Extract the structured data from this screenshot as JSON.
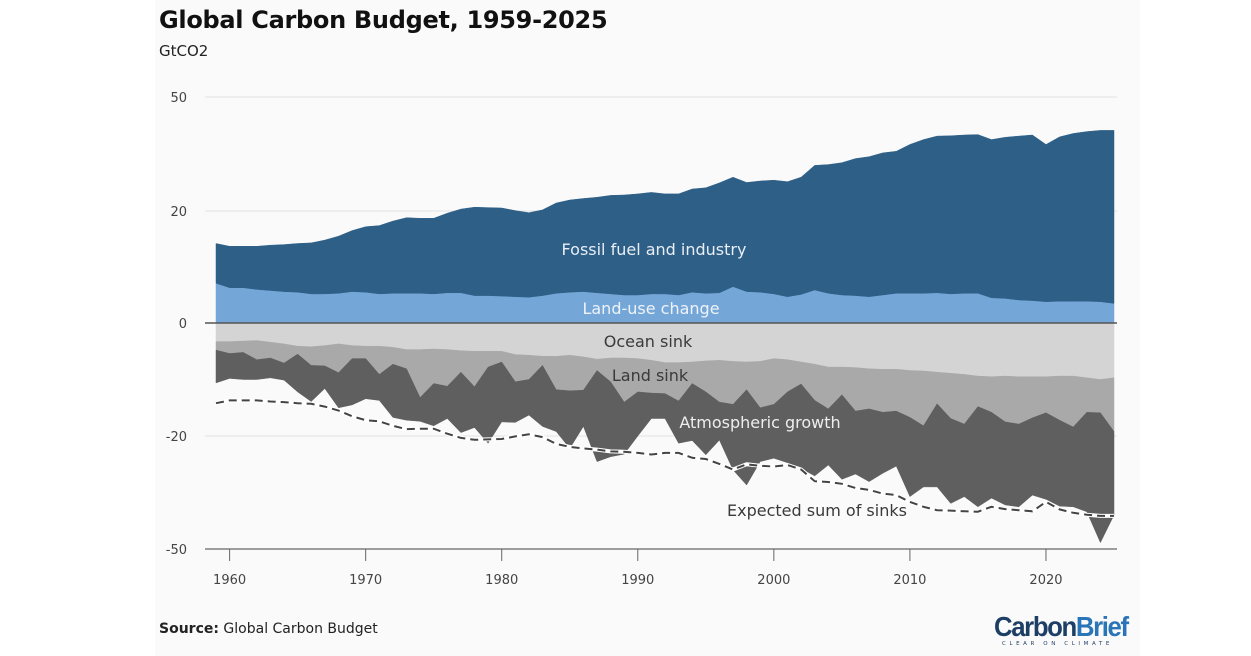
{
  "title": "Global Carbon Budget, 1959-2025",
  "subtitle": "GtCO2",
  "source_label": "Source:",
  "source_text": "Global Carbon Budget",
  "logo": {
    "part1": "Carbon",
    "part2": "Brief",
    "tagline": "CLEAR ON CLIMATE"
  },
  "colors": {
    "fossil": "#2e5f87",
    "land_use": "#74a6d7",
    "ocean_sink": "#d4d4d4",
    "land_sink": "#a9a9a9",
    "atmospheric": "#5f5f5f",
    "expected_line": "#444444"
  },
  "chart_data": {
    "type": "area",
    "title": "Global Carbon Budget, 1959-2025",
    "subtitle": "GtCO2",
    "xlabel": "",
    "ylabel": "GtCO2",
    "xlim": [
      1959,
      2025
    ],
    "x_ticks": [
      1960,
      1970,
      1980,
      1990,
      2000,
      2010,
      2020
    ],
    "y_ticks": [
      50,
      20,
      0,
      -20,
      -50
    ],
    "y_scale_note": "tick labels are evenly spaced (non-linear scale)",
    "grid": true,
    "x": [
      1959,
      1960,
      1961,
      1962,
      1963,
      1964,
      1965,
      1966,
      1967,
      1968,
      1969,
      1970,
      1971,
      1972,
      1973,
      1974,
      1975,
      1976,
      1977,
      1978,
      1979,
      1980,
      1981,
      1982,
      1983,
      1984,
      1985,
      1986,
      1987,
      1988,
      1989,
      1990,
      1991,
      1992,
      1993,
      1994,
      1995,
      1996,
      1997,
      1998,
      1999,
      2000,
      2001,
      2002,
      2003,
      2004,
      2005,
      2006,
      2007,
      2008,
      2009,
      2010,
      2011,
      2012,
      2013,
      2014,
      2015,
      2016,
      2017,
      2018,
      2019,
      2020,
      2021,
      2022,
      2023,
      2024,
      2025
    ],
    "series": [
      {
        "name": "Land-use change",
        "stack": "positive",
        "label": "Land-use change",
        "values": [
          7.1,
          6.3,
          6.3,
          6.0,
          5.8,
          5.6,
          5.5,
          5.2,
          5.2,
          5.3,
          5.6,
          5.5,
          5.2,
          5.3,
          5.3,
          5.3,
          5.2,
          5.4,
          5.4,
          4.9,
          4.9,
          4.8,
          4.7,
          4.6,
          4.9,
          5.3,
          5.5,
          5.6,
          5.4,
          5.2,
          5.0,
          5.0,
          5.2,
          5.2,
          5.0,
          5.5,
          5.3,
          5.4,
          6.5,
          5.6,
          5.5,
          5.2,
          4.7,
          5.1,
          5.9,
          5.3,
          5.0,
          4.9,
          4.7,
          5.0,
          5.3,
          5.3,
          5.3,
          5.4,
          5.2,
          5.3,
          5.3,
          4.5,
          4.4,
          4.1,
          4.0,
          3.8,
          3.9,
          3.9,
          3.9,
          3.8,
          3.5
        ]
      },
      {
        "name": "Fossil fuel and industry",
        "stack": "positive",
        "label": "Fossil fuel and industry",
        "values": [
          7.1,
          7.4,
          7.4,
          7.7,
          8.1,
          8.4,
          8.7,
          9.1,
          9.6,
          10.2,
          10.9,
          11.7,
          12.2,
          12.9,
          13.5,
          13.4,
          13.5,
          14.2,
          15.1,
          16.1,
          16.0,
          16.0,
          15.4,
          15.1,
          15.4,
          16.8,
          17.4,
          17.7,
          18.2,
          18.9,
          19.2,
          19.5,
          19.7,
          19.3,
          19.5,
          20.3,
          20.8,
          22.0,
          22.4,
          21.9,
          22.4,
          22.9,
          23.0,
          23.8,
          26.1,
          26.9,
          27.7,
          28.9,
          29.6,
          30.3,
          30.4,
          32.2,
          33.5,
          34.3,
          34.6,
          34.7,
          34.8,
          34.3,
          35.0,
          35.6,
          36.0,
          33.7,
          35.6,
          36.5,
          37.0,
          37.4,
          37.7
        ]
      },
      {
        "name": "Ocean sink",
        "stack": "negative",
        "label": "Ocean sink",
        "values": [
          -3.3,
          -3.3,
          -3.2,
          -3.1,
          -3.4,
          -3.7,
          -4.1,
          -4.2,
          -4.0,
          -3.7,
          -4.0,
          -4.1,
          -4.1,
          -4.3,
          -4.7,
          -4.7,
          -4.6,
          -4.7,
          -4.9,
          -5.0,
          -5.0,
          -5.0,
          -5.6,
          -5.7,
          -5.9,
          -5.9,
          -5.7,
          -6.0,
          -6.4,
          -6.2,
          -6.2,
          -6.3,
          -6.6,
          -7.0,
          -7.0,
          -6.9,
          -6.7,
          -6.6,
          -6.8,
          -6.9,
          -6.8,
          -6.3,
          -6.5,
          -6.9,
          -7.3,
          -7.8,
          -7.8,
          -7.9,
          -8.1,
          -8.2,
          -8.2,
          -8.4,
          -8.5,
          -8.7,
          -8.9,
          -9.1,
          -9.4,
          -9.5,
          -9.4,
          -9.5,
          -9.5,
          -9.5,
          -9.4,
          -9.4,
          -9.7,
          -10.0,
          -9.7
        ]
      },
      {
        "name": "Land sink",
        "stack": "negative",
        "label": "Land sink",
        "values": [
          -1.5,
          -2.1,
          -2.0,
          -3.4,
          -2.8,
          -3.4,
          -1.4,
          -3.3,
          -3.6,
          -5.1,
          -2.3,
          -2.2,
          -5.0,
          -3.0,
          -3.4,
          -8.5,
          -6.1,
          -6.5,
          -3.8,
          -6.3,
          -2.8,
          -1.9,
          -4.8,
          -4.3,
          -1.6,
          -5.9,
          -6.3,
          -5.9,
          -2.0,
          -4.2,
          -7.8,
          -5.9,
          -5.8,
          -5.5,
          -6.8,
          -3.8,
          -5.5,
          -7.4,
          -7.6,
          -4.9,
          -8.2,
          -8.1,
          -5.7,
          -3.9,
          -6.4,
          -7.4,
          -4.9,
          -7.7,
          -7.1,
          -7.6,
          -7.4,
          -8.3,
          -9.7,
          -5.6,
          -8.0,
          -8.8,
          -5.4,
          -6.3,
          -8.1,
          -8.4,
          -7.3,
          -6.4,
          -7.8,
          -9.0,
          -6.1,
          -5.9,
          -9.5
        ]
      },
      {
        "name": "Atmospheric growth",
        "stack": "negative",
        "label": "Atmospheric growth",
        "values": [
          -5.8,
          -4.4,
          -4.8,
          -3.5,
          -3.5,
          -3.0,
          -6.7,
          -6.4,
          -4.0,
          -6.2,
          -8.2,
          -7.1,
          -4.6,
          -9.4,
          -9.1,
          -4.2,
          -7.5,
          -5.7,
          -10.7,
          -7.2,
          -14.1,
          -10.6,
          -7.2,
          -6.3,
          -10.8,
          -7.4,
          -11.3,
          -6.4,
          -18.4,
          -15.1,
          -10.8,
          -7.8,
          -4.5,
          -4.4,
          -8.1,
          -10.5,
          -12.8,
          -7.1,
          -14.6,
          -21.2,
          -11.8,
          -11.5,
          -14.9,
          -17.8,
          -16.9,
          -12.5,
          -18.8,
          -14.5,
          -16.9,
          -14.1,
          -12.4,
          -19.4,
          -15.3,
          -19.2,
          -21.0,
          -18.2,
          -24.0,
          -20.7,
          -20.8,
          -20.9,
          -18.9,
          -20.9,
          -21.4,
          -20.4,
          -24.3,
          -32.4,
          -21.8
        ]
      },
      {
        "name": "Expected sum of sinks",
        "type": "line",
        "style": "dashed",
        "label": "Expected sum of sinks",
        "values": [
          -14.2,
          -13.7,
          -13.7,
          -13.7,
          -13.9,
          -14.0,
          -14.2,
          -14.3,
          -14.8,
          -15.5,
          -16.5,
          -17.2,
          -17.4,
          -18.2,
          -18.8,
          -18.7,
          -18.7,
          -19.6,
          -20.5,
          -21.0,
          -20.9,
          -20.8,
          -20.1,
          -19.7,
          -20.3,
          -22.1,
          -22.9,
          -23.3,
          -23.6,
          -24.1,
          -24.2,
          -24.5,
          -24.9,
          -24.5,
          -24.5,
          -25.8,
          -26.1,
          -27.4,
          -28.9,
          -27.5,
          -27.9,
          -28.1,
          -27.7,
          -28.9,
          -32.0,
          -32.2,
          -32.7,
          -33.8,
          -34.3,
          -35.3,
          -35.7,
          -37.5,
          -38.8,
          -39.7,
          -39.8,
          -40.0,
          -40.1,
          -38.8,
          -39.4,
          -39.7,
          -40.0,
          -37.5,
          -39.5,
          -40.4,
          -40.9,
          -41.2,
          -41.2
        ]
      }
    ]
  }
}
